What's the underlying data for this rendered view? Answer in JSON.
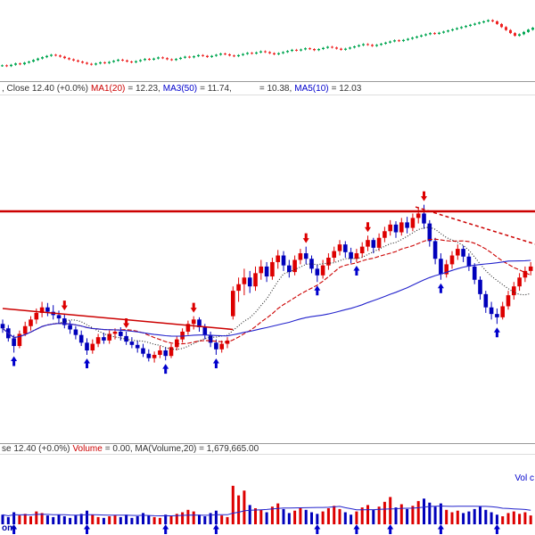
{
  "header1": {
    "close_text": ", Close 12.40 (+0.0%)",
    "ma1_label": "MA1(20)",
    "ma1_value": "= 12.23,",
    "ma3_label": "MA3(50)",
    "ma3_value": "= 11.74,",
    "ma4_value": "= 10.38,",
    "ma5_label": "MA5(10)",
    "ma5_value": "= 12.03"
  },
  "header2": {
    "close_text": "se 12.40 (+0.0%)",
    "volume_label": "Volume",
    "volume_value": "= 0.00, MA(Volume,20) = 1,679,665.00"
  },
  "labels": {
    "vol_overlay": "Vol c",
    "watermark": "om"
  },
  "colors": {
    "up": "#dd0000",
    "down": "#0000bb",
    "mini_up": "#00a651",
    "mini_down": "#ee2222",
    "trend_line": "#cc0000",
    "arrow_up": "#0000cc",
    "arrow_down": "#dd0000"
  },
  "chart_data": [
    {
      "id": "mini",
      "type": "candlestick",
      "description": "top overview mini candlestick chart, long-term uptrend with late pullback",
      "value_range": [
        10.2,
        13.3
      ],
      "up_color": "#00a651",
      "down_color": "#ee2222",
      "values": [
        10.42,
        10.38,
        10.45,
        10.52,
        10.48,
        10.56,
        10.62,
        10.7,
        10.78,
        10.85,
        10.92,
        10.98,
        10.94,
        10.88,
        10.8,
        10.74,
        10.68,
        10.62,
        10.56,
        10.5,
        10.46,
        10.52,
        10.58,
        10.54,
        10.6,
        10.66,
        10.72,
        10.68,
        10.62,
        10.58,
        10.64,
        10.7,
        10.76,
        10.72,
        10.78,
        10.84,
        10.8,
        10.74,
        10.7,
        10.76,
        10.82,
        10.88,
        10.84,
        10.9,
        10.96,
        10.92,
        10.86,
        10.92,
        10.98,
        11.04,
        11.0,
        10.94,
        10.9,
        10.96,
        11.02,
        11.08,
        11.04,
        11.1,
        11.16,
        11.12,
        11.06,
        11.0,
        11.06,
        11.12,
        11.18,
        11.24,
        11.2,
        11.26,
        11.32,
        11.28,
        11.22,
        11.28,
        11.34,
        11.4,
        11.36,
        11.3,
        11.24,
        11.3,
        11.36,
        11.42,
        11.48,
        11.54,
        11.5,
        11.44,
        11.5,
        11.56,
        11.62,
        11.68,
        11.74,
        11.7,
        11.76,
        11.82,
        11.88,
        11.94,
        12.0,
        12.06,
        12.12,
        12.08,
        12.14,
        12.2,
        12.26,
        12.32,
        12.38,
        12.44,
        12.5,
        12.56,
        12.62,
        12.68,
        12.74,
        12.8,
        12.74,
        12.6,
        12.44,
        12.28,
        12.12,
        11.98,
        12.06,
        12.18,
        12.3,
        12.4
      ]
    },
    {
      "id": "main",
      "type": "candlestick",
      "description": "main daily candlestick panel with MA lines, resistance line, trend lines and signal arrows",
      "last_close": 12.4,
      "change_pct": "+0.0%",
      "price_range": [
        10.8,
        13.95
      ],
      "up_color": "#dd0000",
      "down_color": "#0000bb",
      "bars": [
        [
          11.88,
          11.92,
          11.8,
          11.84
        ],
        [
          11.84,
          11.87,
          11.72,
          11.75
        ],
        [
          11.75,
          11.78,
          11.62,
          11.68
        ],
        [
          11.68,
          11.82,
          11.66,
          11.79
        ],
        [
          11.79,
          11.9,
          11.77,
          11.86
        ],
        [
          11.86,
          11.95,
          11.82,
          11.92
        ],
        [
          11.92,
          12.02,
          11.88,
          11.98
        ],
        [
          11.98,
          12.08,
          11.94,
          12.03
        ],
        [
          12.03,
          12.07,
          11.95,
          11.99
        ],
        [
          11.99,
          12.05,
          11.92,
          11.96
        ],
        [
          11.96,
          12.0,
          11.88,
          11.93
        ],
        [
          11.93,
          11.97,
          11.84,
          11.87
        ],
        [
          11.87,
          11.91,
          11.79,
          11.83
        ],
        [
          11.83,
          11.86,
          11.74,
          11.78
        ],
        [
          11.78,
          11.82,
          11.68,
          11.71
        ],
        [
          11.71,
          11.75,
          11.6,
          11.64
        ],
        [
          11.64,
          11.74,
          11.61,
          11.7
        ],
        [
          11.7,
          11.79,
          11.67,
          11.76
        ],
        [
          11.76,
          11.8,
          11.7,
          11.73
        ],
        [
          11.73,
          11.82,
          11.7,
          11.79
        ],
        [
          11.79,
          11.84,
          11.74,
          11.81
        ],
        [
          11.81,
          11.85,
          11.73,
          11.77
        ],
        [
          11.77,
          11.81,
          11.69,
          11.72
        ],
        [
          11.72,
          11.76,
          11.66,
          11.69
        ],
        [
          11.69,
          11.73,
          11.62,
          11.66
        ],
        [
          11.66,
          11.7,
          11.58,
          11.61
        ],
        [
          11.61,
          11.65,
          11.54,
          11.57
        ],
        [
          11.57,
          11.63,
          11.53,
          11.6
        ],
        [
          11.6,
          11.68,
          11.57,
          11.64
        ],
        [
          11.64,
          11.67,
          11.55,
          11.59
        ],
        [
          11.59,
          11.7,
          11.57,
          11.67
        ],
        [
          11.67,
          11.77,
          11.64,
          11.74
        ],
        [
          11.74,
          11.84,
          11.71,
          11.81
        ],
        [
          11.81,
          11.91,
          11.78,
          11.88
        ],
        [
          11.88,
          11.95,
          11.83,
          11.92
        ],
        [
          11.92,
          11.94,
          11.81,
          11.85
        ],
        [
          11.85,
          11.88,
          11.74,
          11.78
        ],
        [
          11.78,
          11.81,
          11.67,
          11.71
        ],
        [
          11.71,
          11.74,
          11.6,
          11.65
        ],
        [
          11.65,
          11.73,
          11.62,
          11.7
        ],
        [
          11.7,
          11.76,
          11.66,
          11.73
        ],
        [
          11.95,
          12.22,
          11.92,
          12.18
        ],
        [
          12.18,
          12.3,
          12.08,
          12.24
        ],
        [
          12.24,
          12.38,
          12.14,
          12.3
        ],
        [
          12.3,
          12.36,
          12.16,
          12.22
        ],
        [
          12.22,
          12.4,
          12.18,
          12.34
        ],
        [
          12.34,
          12.46,
          12.28,
          12.4
        ],
        [
          12.4,
          12.44,
          12.26,
          12.31
        ],
        [
          12.31,
          12.48,
          12.28,
          12.44
        ],
        [
          12.44,
          12.55,
          12.38,
          12.5
        ],
        [
          12.5,
          12.54,
          12.36,
          12.41
        ],
        [
          12.41,
          12.46,
          12.3,
          12.35
        ],
        [
          12.35,
          12.5,
          12.32,
          12.46
        ],
        [
          12.46,
          12.56,
          12.42,
          12.52
        ],
        [
          12.52,
          12.58,
          12.42,
          12.47
        ],
        [
          12.47,
          12.5,
          12.34,
          12.38
        ],
        [
          12.38,
          12.42,
          12.26,
          12.32
        ],
        [
          12.32,
          12.46,
          12.29,
          12.41
        ],
        [
          12.41,
          12.52,
          12.37,
          12.48
        ],
        [
          12.48,
          12.58,
          12.44,
          12.54
        ],
        [
          12.54,
          12.64,
          12.5,
          12.6
        ],
        [
          12.6,
          12.63,
          12.48,
          12.53
        ],
        [
          12.53,
          12.57,
          12.43,
          12.47
        ],
        [
          12.47,
          12.56,
          12.44,
          12.52
        ],
        [
          12.52,
          12.62,
          12.48,
          12.58
        ],
        [
          12.58,
          12.68,
          12.54,
          12.64
        ],
        [
          12.64,
          12.66,
          12.52,
          12.57
        ],
        [
          12.57,
          12.7,
          12.54,
          12.66
        ],
        [
          12.66,
          12.76,
          12.62,
          12.72
        ],
        [
          12.72,
          12.82,
          12.68,
          12.78
        ],
        [
          12.78,
          12.81,
          12.66,
          12.71
        ],
        [
          12.71,
          12.84,
          12.68,
          12.8
        ],
        [
          12.8,
          12.85,
          12.7,
          12.75
        ],
        [
          12.75,
          12.88,
          12.72,
          12.84
        ],
        [
          12.84,
          12.93,
          12.79,
          12.88
        ],
        [
          12.88,
          12.96,
          12.74,
          12.79
        ],
        [
          12.79,
          12.82,
          12.58,
          12.63
        ],
        [
          12.63,
          12.66,
          12.42,
          12.47
        ],
        [
          12.47,
          12.52,
          12.28,
          12.33
        ],
        [
          12.33,
          12.46,
          12.3,
          12.42
        ],
        [
          12.42,
          12.54,
          12.38,
          12.5
        ],
        [
          12.5,
          12.6,
          12.46,
          12.56
        ],
        [
          12.56,
          12.59,
          12.44,
          12.49
        ],
        [
          12.49,
          12.52,
          12.36,
          12.4
        ],
        [
          12.4,
          12.43,
          12.24,
          12.28
        ],
        [
          12.28,
          12.31,
          12.1,
          12.15
        ],
        [
          12.15,
          12.18,
          11.98,
          12.03
        ],
        [
          12.03,
          12.08,
          11.92,
          11.97
        ],
        [
          11.97,
          12.02,
          11.88,
          11.94
        ],
        [
          11.94,
          12.08,
          11.92,
          12.04
        ],
        [
          12.04,
          12.18,
          12.01,
          12.14
        ],
        [
          12.14,
          12.26,
          12.1,
          12.22
        ],
        [
          12.22,
          12.34,
          12.18,
          12.3
        ],
        [
          12.3,
          12.4,
          12.26,
          12.36
        ],
        [
          12.36,
          12.44,
          12.32,
          12.4
        ]
      ],
      "mas": [
        {
          "name": "MA5(10)",
          "window": 10,
          "value": 12.03,
          "color": "#222222",
          "dash": "1,2"
        },
        {
          "name": "MA1(20)",
          "window": 20,
          "value": 12.23,
          "color": "#cc0000",
          "dash": "5,2"
        },
        {
          "name": "MA3(50)",
          "window": 50,
          "value": 11.74,
          "color": "#2222cc",
          "dash": ""
        }
      ],
      "lines": [
        {
          "type": "hline",
          "price": 12.9,
          "color": "#cc0000",
          "width": 2.5,
          "dash": ""
        },
        {
          "type": "segment",
          "bar1": 0,
          "price1": 12.02,
          "bar2": 41,
          "price2": 11.83,
          "color": "#cc0000",
          "width": 1.5,
          "dash": ""
        },
        {
          "type": "segment",
          "bar1": 73.5,
          "price1": 12.94,
          "bar2": 95,
          "price2": 12.6,
          "color": "#cc0000",
          "width": 1.5,
          "dash": "4,3"
        }
      ],
      "arrows_up": [
        2,
        15,
        29,
        38,
        56,
        63,
        78,
        88
      ],
      "arrows_down": [
        11,
        22,
        34,
        54,
        65,
        75
      ],
      "arrow_up_color": "#0000cc",
      "arrow_down_color": "#dd0000"
    },
    {
      "id": "volume",
      "type": "bar",
      "description": "volume panel, values in millions of shares, with 20-period volume MA",
      "ma_window": 20,
      "ma_color": "#2222cc",
      "last_volume": "0.00",
      "ma_value": "1,679,665.00",
      "arrow_color": "#0000cc",
      "arrows_up": [
        2,
        15,
        29,
        38,
        56,
        63,
        69,
        78,
        88
      ],
      "values": [
        1.2,
        0.9,
        1.5,
        1.1,
        1.3,
        1.0,
        1.6,
        1.4,
        1.1,
        0.9,
        1.2,
        1.0,
        0.8,
        1.1,
        1.3,
        1.7,
        1.2,
        0.9,
        0.8,
        1.0,
        1.1,
        0.9,
        1.2,
        0.8,
        1.0,
        1.4,
        1.1,
        0.9,
        0.8,
        1.2,
        1.0,
        1.3,
        1.5,
        1.8,
        1.6,
        1.2,
        1.0,
        1.4,
        1.7,
        1.1,
        0.9,
        4.8,
        3.6,
        4.2,
        2.4,
        2.0,
        1.8,
        1.5,
        2.2,
        2.6,
        1.9,
        1.4,
        1.7,
        2.1,
        1.8,
        1.5,
        1.3,
        1.6,
        2.0,
        2.3,
        1.9,
        1.5,
        1.2,
        1.6,
        2.1,
        2.4,
        1.8,
        2.2,
        2.8,
        3.4,
        2.1,
        2.5,
        1.9,
        2.3,
        2.9,
        3.2,
        2.7,
        2.2,
        2.6,
        1.8,
        1.5,
        1.7,
        1.4,
        1.6,
        1.9,
        2.2,
        1.8,
        1.5,
        1.2,
        1.0,
        1.4,
        1.6,
        1.3,
        1.5,
        1.1
      ]
    }
  ]
}
